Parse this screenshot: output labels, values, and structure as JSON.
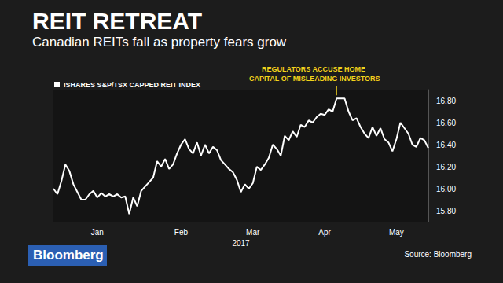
{
  "chart_data": {
    "type": "line",
    "title": "REIT RETREAT",
    "subtitle": "Canadian REITs fall as property fears grow",
    "xlabel": "2017",
    "annotation": "REGULATORS ACCUSE HOME CAPITAL OF MISLEADING INVESTORS",
    "source": "Source: Bloomberg",
    "logo": "Bloomberg",
    "legend": "top-left",
    "grid": false,
    "categories": [
      null,
      null,
      null,
      null,
      null,
      null,
      null,
      null,
      null,
      null,
      null,
      "Jan",
      null,
      null,
      null,
      null,
      null,
      null,
      null,
      null,
      null,
      null,
      null,
      null,
      null,
      null,
      null,
      null,
      null,
      null,
      null,
      null,
      "Feb",
      null,
      null,
      null,
      null,
      null,
      null,
      null,
      null,
      null,
      null,
      null,
      null,
      null,
      null,
      null,
      null,
      null,
      "Mar",
      null,
      null,
      null,
      null,
      null,
      null,
      null,
      null,
      null,
      null,
      null,
      null,
      null,
      null,
      null,
      null,
      null,
      "Apr",
      null,
      null,
      null,
      null,
      null,
      null,
      null,
      null,
      null,
      null,
      null,
      null,
      null,
      null,
      null,
      null,
      null,
      "May",
      null,
      null,
      null,
      null,
      null,
      null,
      null,
      null
    ],
    "series": [
      {
        "name": "ISHARES S&P/TSX CAPPED REIT INDEX",
        "color": "#ffffff",
        "values": [
          16.0,
          15.95,
          16.07,
          16.22,
          16.16,
          16.04,
          15.97,
          15.9,
          15.9,
          15.95,
          15.98,
          15.92,
          15.96,
          15.93,
          15.95,
          15.93,
          15.95,
          15.92,
          15.93,
          15.77,
          15.92,
          15.84,
          15.98,
          16.02,
          16.06,
          16.1,
          16.25,
          16.2,
          16.27,
          16.18,
          16.22,
          16.32,
          16.4,
          16.45,
          16.36,
          16.32,
          16.42,
          16.3,
          16.4,
          16.32,
          16.38,
          16.35,
          16.26,
          16.22,
          16.18,
          16.15,
          16.08,
          15.97,
          16.04,
          16.0,
          16.05,
          16.2,
          16.17,
          16.22,
          16.28,
          16.4,
          16.36,
          16.3,
          16.48,
          16.44,
          16.52,
          16.47,
          16.58,
          16.56,
          16.62,
          16.6,
          16.65,
          16.68,
          16.67,
          16.72,
          16.7,
          16.82,
          16.82,
          16.82,
          16.7,
          16.62,
          16.64,
          16.56,
          16.5,
          16.46,
          16.56,
          16.48,
          16.55,
          16.45,
          16.42,
          16.34,
          16.45,
          16.6,
          16.55,
          16.5,
          16.4,
          16.38,
          16.46,
          16.44,
          16.37
        ]
      }
    ],
    "ylim": [
      15.7,
      16.9
    ],
    "yticks": [
      {
        "value": 15.8,
        "label": "15.80"
      },
      {
        "value": 16.0,
        "label": "16.00"
      },
      {
        "value": 16.2,
        "label": "16.20"
      },
      {
        "value": 16.4,
        "label": "16.40"
      },
      {
        "value": 16.6,
        "label": "16.60"
      },
      {
        "value": 16.8,
        "label": "16.80"
      }
    ]
  }
}
